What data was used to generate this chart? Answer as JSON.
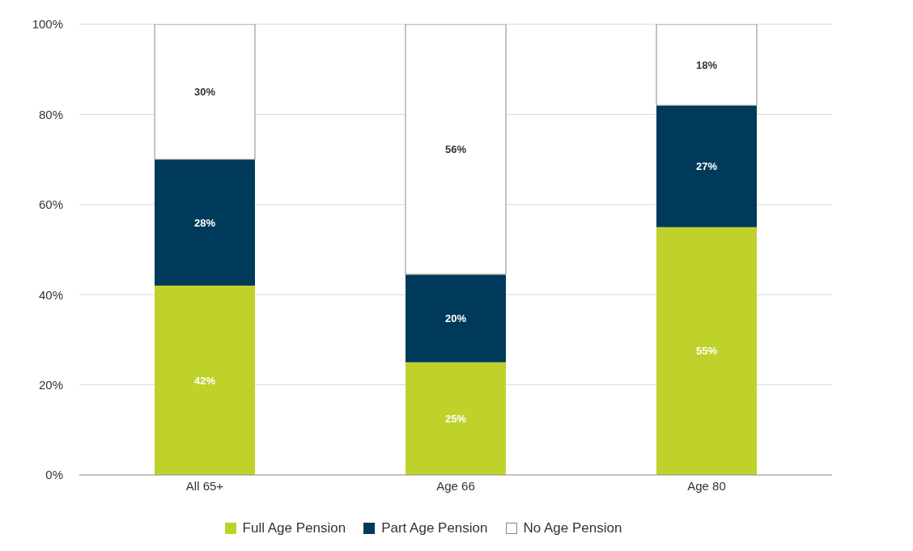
{
  "chart_data": {
    "type": "bar",
    "stacked": true,
    "categories": [
      "All 65+",
      "Age 66",
      "Age 80"
    ],
    "series": [
      {
        "name": "Full Age Pension",
        "color": "#bfd22b",
        "values": [
          42,
          25,
          55
        ],
        "value_labels": [
          "42%",
          "25%",
          "55%"
        ]
      },
      {
        "name": "Part Age Pension",
        "color": "#003a5a",
        "values": [
          28,
          19.5,
          27
        ],
        "value_labels": [
          "28%",
          "20%",
          "27%"
        ]
      },
      {
        "name": "No Age Pension",
        "color": "#ffffff",
        "values": [
          30,
          55.5,
          18
        ],
        "value_labels": [
          "30%",
          "56%",
          "18%"
        ]
      }
    ],
    "ylim": [
      0,
      100
    ],
    "yticks": [
      {
        "value": 0,
        "label": "0%"
      },
      {
        "value": 20,
        "label": "20%"
      },
      {
        "value": 40,
        "label": "40%"
      },
      {
        "value": 60,
        "label": "60%"
      },
      {
        "value": 80,
        "label": "80%"
      },
      {
        "value": 100,
        "label": "100%"
      }
    ],
    "grid": "y",
    "legend": "bottom"
  }
}
